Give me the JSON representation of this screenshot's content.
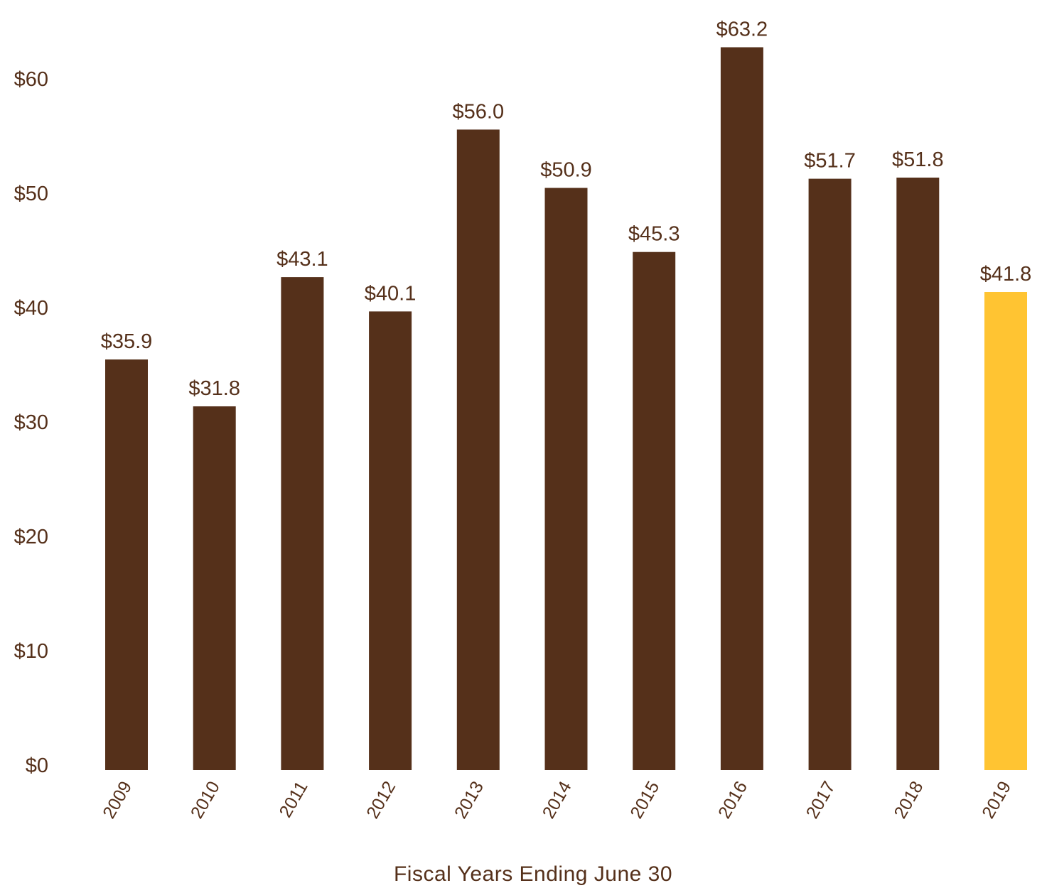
{
  "chart_data": {
    "type": "bar",
    "title": "",
    "xlabel": "Fiscal Years Ending June 30",
    "ylabel": "",
    "ylim": [
      0,
      60
    ],
    "yticks": [
      "$0",
      "$10",
      "$20",
      "$30",
      "$40",
      "$50",
      "$60"
    ],
    "categories": [
      "2009",
      "2010",
      "2011",
      "2012",
      "2013",
      "2014",
      "2015",
      "2016",
      "2017",
      "2018",
      "2019"
    ],
    "values": [
      35.9,
      31.8,
      43.1,
      40.1,
      56.0,
      50.9,
      45.3,
      63.2,
      51.7,
      51.8,
      41.8
    ],
    "value_labels": [
      "$35.9",
      "$31.8",
      "$43.1",
      "$40.1",
      "$56.0",
      "$50.9",
      "$45.3",
      "$63.2",
      "$51.7",
      "$51.8",
      "$41.8"
    ],
    "grid": false,
    "legend": "none",
    "colors": {
      "bar": "#55301a",
      "highlight": "#ffc432",
      "text": "#55301a"
    },
    "highlight_category": "2019"
  }
}
